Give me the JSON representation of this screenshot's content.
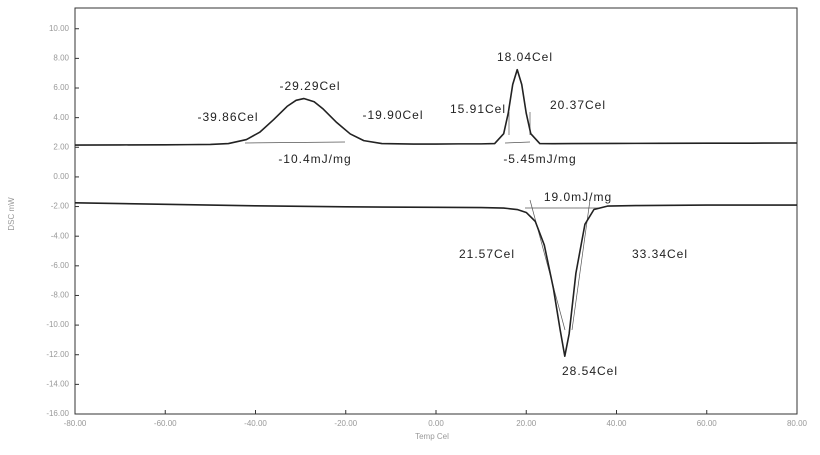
{
  "chart_data": {
    "type": "line",
    "x_label": "Temp Cel",
    "y_label": "DSC mW",
    "xlim": [
      -80,
      80
    ],
    "xticks": [
      {
        "value": -80,
        "label": "-80.00"
      },
      {
        "value": -60,
        "label": "-60.00"
      },
      {
        "value": -40,
        "label": "-40.00"
      },
      {
        "value": -20,
        "label": "-20.00"
      },
      {
        "value": 0,
        "label": "0.00"
      },
      {
        "value": 20,
        "label": "20.00"
      },
      {
        "value": 40,
        "label": "40.00"
      },
      {
        "value": 60,
        "label": "60.00"
      },
      {
        "value": 80,
        "label": "80.00"
      }
    ],
    "ylim": [
      -16,
      11.4
    ],
    "yticks": [
      {
        "value": 10,
        "label": "10.00"
      },
      {
        "value": 8,
        "label": "8.00"
      },
      {
        "value": 6,
        "label": "6.00"
      },
      {
        "value": 4,
        "label": "4.00"
      },
      {
        "value": 2,
        "label": "2.00"
      },
      {
        "value": 0,
        "label": "0.00"
      },
      {
        "value": -2,
        "label": "-2.00"
      },
      {
        "value": -4,
        "label": "-4.00"
      },
      {
        "value": -6,
        "label": "-6.00"
      },
      {
        "value": -8,
        "label": "-8.00"
      },
      {
        "value": -10,
        "label": "-10.00"
      },
      {
        "value": -12,
        "label": "-12.00"
      },
      {
        "value": -14,
        "label": "-14.00"
      },
      {
        "value": -16,
        "label": "-16.00"
      }
    ],
    "grid": false,
    "series": [
      {
        "color": "#222222",
        "x": [
          -80,
          -70,
          -60,
          -55,
          -50,
          -46,
          -42,
          -39,
          -36,
          -33,
          -31,
          -29.3,
          -27,
          -25,
          -22,
          -19,
          -16,
          -12,
          -5,
          0,
          5,
          10,
          13,
          15,
          16,
          17,
          18,
          19,
          20,
          21,
          23,
          26,
          30,
          40,
          50,
          60,
          70,
          80
        ],
        "values": [
          2.15,
          2.16,
          2.17,
          2.18,
          2.19,
          2.25,
          2.52,
          3.03,
          3.86,
          4.76,
          5.17,
          5.29,
          5.07,
          4.58,
          3.67,
          2.9,
          2.45,
          2.25,
          2.22,
          2.22,
          2.23,
          2.23,
          2.25,
          2.92,
          4.29,
          6.24,
          7.24,
          6.24,
          4.29,
          2.92,
          2.25,
          2.24,
          2.25,
          2.26,
          2.27,
          2.28,
          2.28,
          2.29
        ]
      },
      {
        "color": "#222222",
        "x": [
          -80,
          -60,
          -40,
          -20,
          0,
          10,
          15,
          18,
          20,
          22,
          24,
          26,
          27.5,
          28.54,
          29.5,
          31,
          33,
          35,
          38,
          45,
          60,
          80
        ],
        "values": [
          -1.75,
          -1.85,
          -1.95,
          -2.02,
          -2.05,
          -2.07,
          -2.1,
          -2.2,
          -2.4,
          -3.0,
          -4.6,
          -7.5,
          -10.3,
          -12.1,
          -10.6,
          -6.5,
          -3.2,
          -2.2,
          -1.97,
          -1.93,
          -1.9,
          -1.9
        ]
      }
    ],
    "annotations": [
      "-29.29Cel",
      "-39.86Cel",
      "-19.90Cel",
      "-10.4mJ/mg",
      "18.04Cel",
      "15.91Cel",
      "20.37Cel",
      "-5.45mJ/mg",
      "19.0mJ/mg",
      "21.57Cel",
      "33.34Cel",
      "28.54Cel"
    ]
  }
}
